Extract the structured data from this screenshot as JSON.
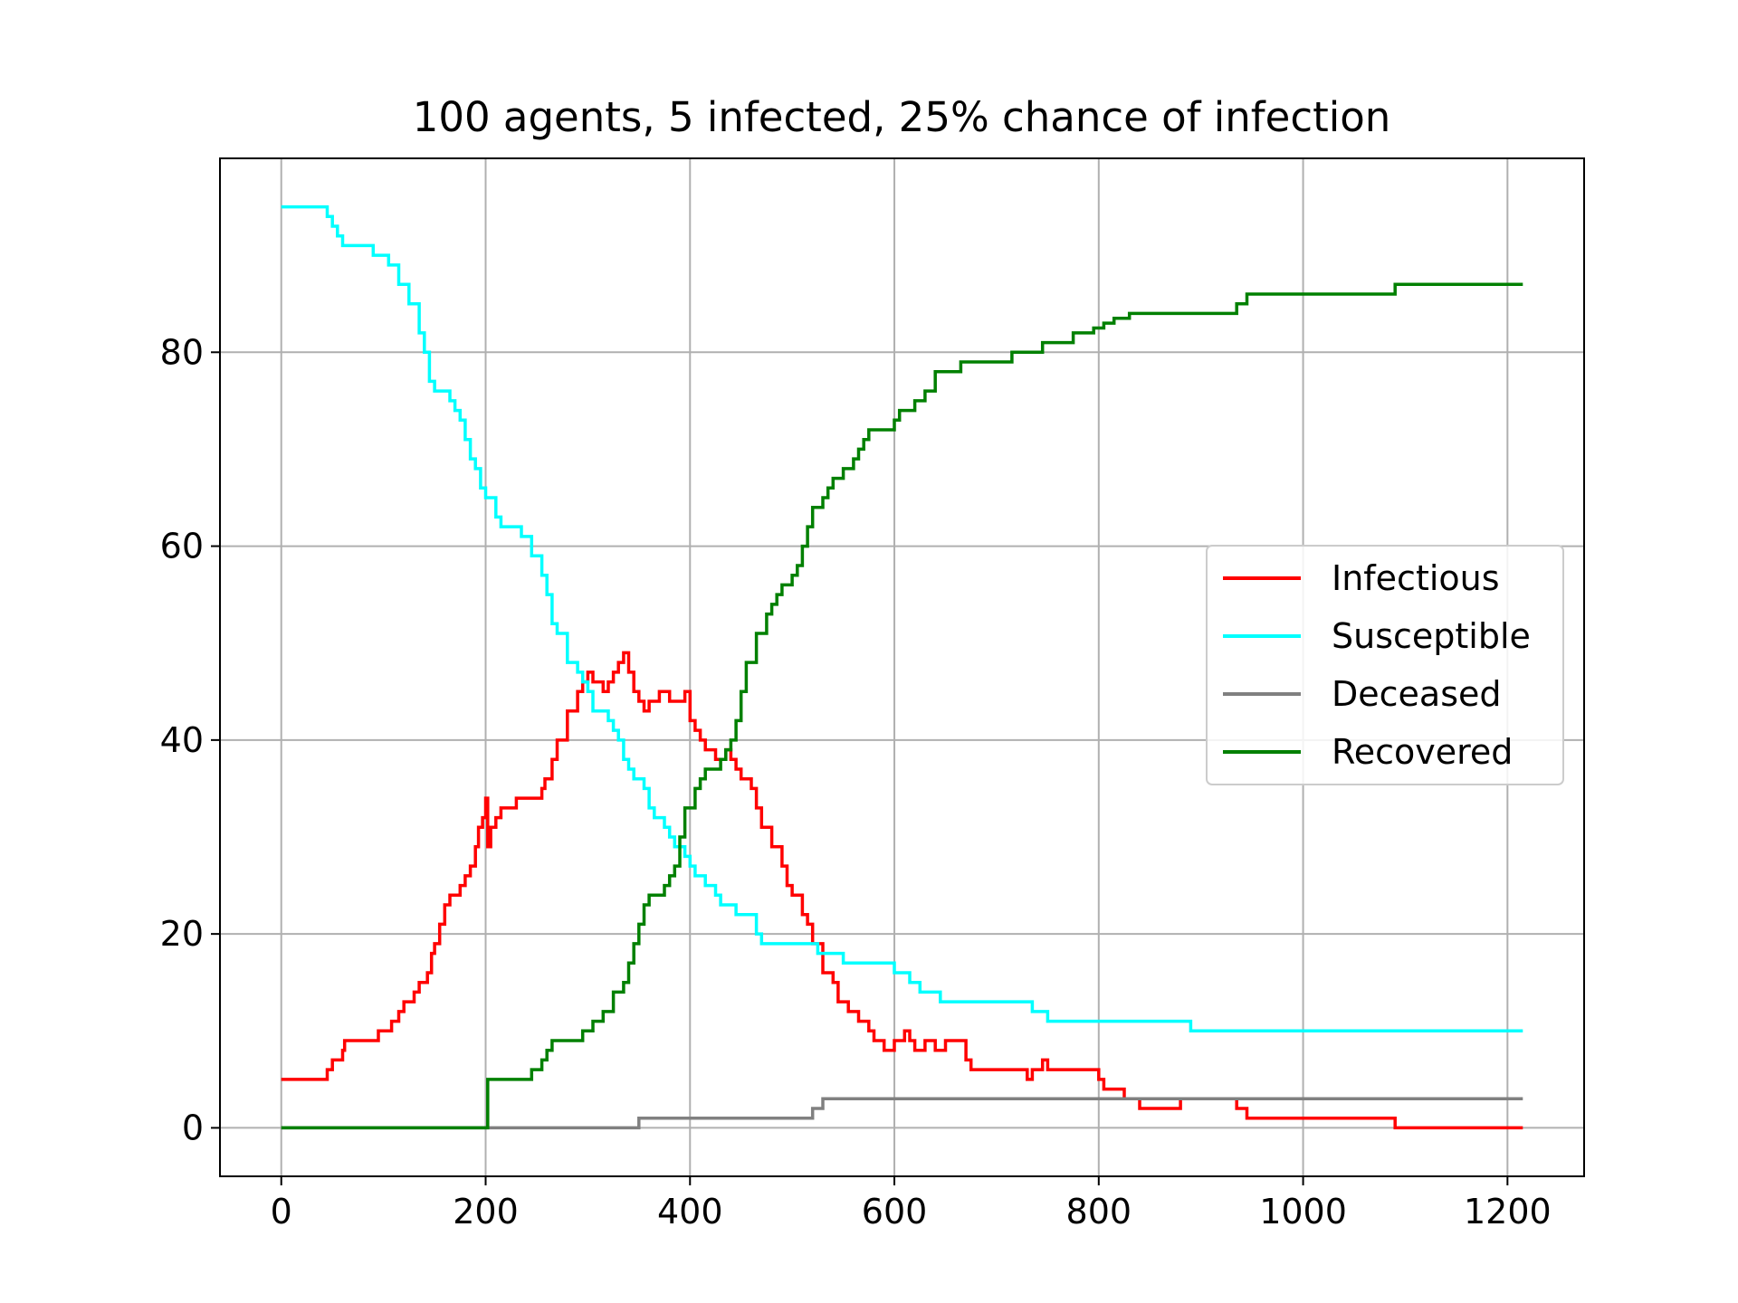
{
  "chart_data": {
    "type": "line",
    "title": "100 agents, 5 infected, 25% chance of infection",
    "xlabel": "",
    "ylabel": "",
    "xlim": [
      -60,
      1275
    ],
    "ylim": [
      -5,
      100
    ],
    "xticks": [
      0,
      200,
      400,
      600,
      800,
      1000,
      1200
    ],
    "yticks": [
      0,
      20,
      40,
      60,
      80
    ],
    "grid": true,
    "legend_position": "center-right",
    "series": [
      {
        "name": "Infectious",
        "color": "#ff0000",
        "step": true,
        "points": [
          [
            0,
            5
          ],
          [
            40,
            5
          ],
          [
            45,
            6
          ],
          [
            50,
            7
          ],
          [
            60,
            8
          ],
          [
            62,
            9
          ],
          [
            90,
            9
          ],
          [
            95,
            10
          ],
          [
            108,
            11
          ],
          [
            115,
            12
          ],
          [
            120,
            13
          ],
          [
            130,
            14
          ],
          [
            135,
            15
          ],
          [
            143,
            16
          ],
          [
            147,
            18
          ],
          [
            150,
            19
          ],
          [
            155,
            21
          ],
          [
            160,
            23
          ],
          [
            165,
            24
          ],
          [
            175,
            25
          ],
          [
            180,
            26
          ],
          [
            185,
            27
          ],
          [
            190,
            29
          ],
          [
            193,
            31
          ],
          [
            197,
            32
          ],
          [
            200,
            34
          ],
          [
            202,
            29
          ],
          [
            205,
            31
          ],
          [
            210,
            32
          ],
          [
            215,
            33
          ],
          [
            230,
            34
          ],
          [
            250,
            34
          ],
          [
            255,
            35
          ],
          [
            258,
            36
          ],
          [
            265,
            38
          ],
          [
            270,
            40
          ],
          [
            280,
            43
          ],
          [
            290,
            45
          ],
          [
            295,
            46
          ],
          [
            300,
            47
          ],
          [
            305,
            46
          ],
          [
            315,
            45
          ],
          [
            320,
            46
          ],
          [
            325,
            47
          ],
          [
            330,
            48
          ],
          [
            335,
            49
          ],
          [
            340,
            47
          ],
          [
            345,
            45
          ],
          [
            350,
            44
          ],
          [
            355,
            43
          ],
          [
            360,
            44
          ],
          [
            370,
            45
          ],
          [
            380,
            44
          ],
          [
            395,
            45
          ],
          [
            400,
            42
          ],
          [
            405,
            41
          ],
          [
            410,
            40
          ],
          [
            415,
            39
          ],
          [
            425,
            38
          ],
          [
            435,
            39
          ],
          [
            440,
            38
          ],
          [
            445,
            37
          ],
          [
            450,
            36
          ],
          [
            460,
            35
          ],
          [
            465,
            33
          ],
          [
            470,
            31
          ],
          [
            480,
            29
          ],
          [
            490,
            27
          ],
          [
            495,
            25
          ],
          [
            500,
            24
          ],
          [
            510,
            22
          ],
          [
            515,
            21
          ],
          [
            520,
            19
          ],
          [
            530,
            16
          ],
          [
            540,
            15
          ],
          [
            545,
            13
          ],
          [
            555,
            12
          ],
          [
            565,
            11
          ],
          [
            575,
            10
          ],
          [
            580,
            9
          ],
          [
            590,
            8
          ],
          [
            600,
            9
          ],
          [
            610,
            10
          ],
          [
            615,
            9
          ],
          [
            620,
            8
          ],
          [
            630,
            9
          ],
          [
            640,
            8
          ],
          [
            650,
            9
          ],
          [
            670,
            7
          ],
          [
            675,
            6
          ],
          [
            725,
            6
          ],
          [
            730,
            5
          ],
          [
            735,
            6
          ],
          [
            745,
            7
          ],
          [
            750,
            6
          ],
          [
            800,
            5
          ],
          [
            805,
            4
          ],
          [
            825,
            3
          ],
          [
            840,
            2
          ],
          [
            880,
            3
          ],
          [
            935,
            2
          ],
          [
            945,
            1
          ],
          [
            1090,
            0
          ],
          [
            1215,
            0
          ]
        ]
      },
      {
        "name": "Susceptible",
        "color": "#00ffff",
        "step": true,
        "points": [
          [
            0,
            95
          ],
          [
            40,
            95
          ],
          [
            45,
            94
          ],
          [
            50,
            93
          ],
          [
            55,
            92
          ],
          [
            60,
            91
          ],
          [
            90,
            90
          ],
          [
            105,
            89
          ],
          [
            115,
            87
          ],
          [
            125,
            85
          ],
          [
            135,
            82
          ],
          [
            140,
            80
          ],
          [
            145,
            77
          ],
          [
            150,
            76
          ],
          [
            165,
            75
          ],
          [
            170,
            74
          ],
          [
            175,
            73
          ],
          [
            180,
            71
          ],
          [
            185,
            69
          ],
          [
            190,
            68
          ],
          [
            195,
            66
          ],
          [
            200,
            65
          ],
          [
            210,
            63
          ],
          [
            215,
            62
          ],
          [
            235,
            61
          ],
          [
            245,
            59
          ],
          [
            255,
            57
          ],
          [
            260,
            55
          ],
          [
            265,
            52
          ],
          [
            270,
            51
          ],
          [
            280,
            48
          ],
          [
            290,
            47
          ],
          [
            295,
            46
          ],
          [
            300,
            45
          ],
          [
            305,
            43
          ],
          [
            320,
            42
          ],
          [
            325,
            41
          ],
          [
            330,
            40
          ],
          [
            335,
            38
          ],
          [
            340,
            37
          ],
          [
            345,
            36
          ],
          [
            355,
            35
          ],
          [
            360,
            33
          ],
          [
            365,
            32
          ],
          [
            375,
            31
          ],
          [
            380,
            30
          ],
          [
            385,
            29
          ],
          [
            395,
            28
          ],
          [
            400,
            27
          ],
          [
            405,
            26
          ],
          [
            415,
            25
          ],
          [
            425,
            24
          ],
          [
            430,
            23
          ],
          [
            445,
            22
          ],
          [
            465,
            20
          ],
          [
            470,
            19
          ],
          [
            525,
            18
          ],
          [
            550,
            17
          ],
          [
            600,
            16
          ],
          [
            615,
            15
          ],
          [
            625,
            14
          ],
          [
            645,
            13
          ],
          [
            735,
            12
          ],
          [
            750,
            11
          ],
          [
            890,
            10
          ],
          [
            1215,
            10
          ]
        ]
      },
      {
        "name": "Deceased",
        "color": "#808080",
        "step": true,
        "points": [
          [
            0,
            0
          ],
          [
            345,
            0
          ],
          [
            350,
            1
          ],
          [
            515,
            1
          ],
          [
            520,
            2
          ],
          [
            530,
            3
          ],
          [
            1215,
            3
          ]
        ]
      },
      {
        "name": "Recovered",
        "color": "#008000",
        "step": true,
        "points": [
          [
            0,
            0
          ],
          [
            200,
            0
          ],
          [
            202,
            5
          ],
          [
            240,
            5
          ],
          [
            245,
            6
          ],
          [
            255,
            7
          ],
          [
            260,
            8
          ],
          [
            265,
            9
          ],
          [
            295,
            10
          ],
          [
            305,
            11
          ],
          [
            315,
            12
          ],
          [
            325,
            14
          ],
          [
            335,
            15
          ],
          [
            340,
            17
          ],
          [
            345,
            19
          ],
          [
            350,
            21
          ],
          [
            355,
            23
          ],
          [
            360,
            24
          ],
          [
            375,
            25
          ],
          [
            380,
            26
          ],
          [
            385,
            27
          ],
          [
            390,
            30
          ],
          [
            395,
            33
          ],
          [
            405,
            35
          ],
          [
            410,
            36
          ],
          [
            415,
            37
          ],
          [
            430,
            38
          ],
          [
            435,
            39
          ],
          [
            440,
            40
          ],
          [
            445,
            42
          ],
          [
            450,
            45
          ],
          [
            455,
            48
          ],
          [
            465,
            51
          ],
          [
            475,
            53
          ],
          [
            480,
            54
          ],
          [
            485,
            55
          ],
          [
            490,
            56
          ],
          [
            500,
            57
          ],
          [
            505,
            58
          ],
          [
            510,
            60
          ],
          [
            515,
            62
          ],
          [
            520,
            64
          ],
          [
            530,
            65
          ],
          [
            535,
            66
          ],
          [
            540,
            67
          ],
          [
            550,
            68
          ],
          [
            560,
            69
          ],
          [
            565,
            70
          ],
          [
            570,
            71
          ],
          [
            575,
            72
          ],
          [
            600,
            73
          ],
          [
            605,
            74
          ],
          [
            620,
            75
          ],
          [
            630,
            76
          ],
          [
            640,
            78
          ],
          [
            665,
            79
          ],
          [
            715,
            80
          ],
          [
            745,
            81
          ],
          [
            775,
            82
          ],
          [
            795,
            82.5
          ],
          [
            805,
            83
          ],
          [
            815,
            83.5
          ],
          [
            830,
            84
          ],
          [
            860,
            84
          ],
          [
            935,
            85
          ],
          [
            945,
            86
          ],
          [
            1090,
            87
          ],
          [
            1215,
            87
          ]
        ]
      }
    ]
  }
}
